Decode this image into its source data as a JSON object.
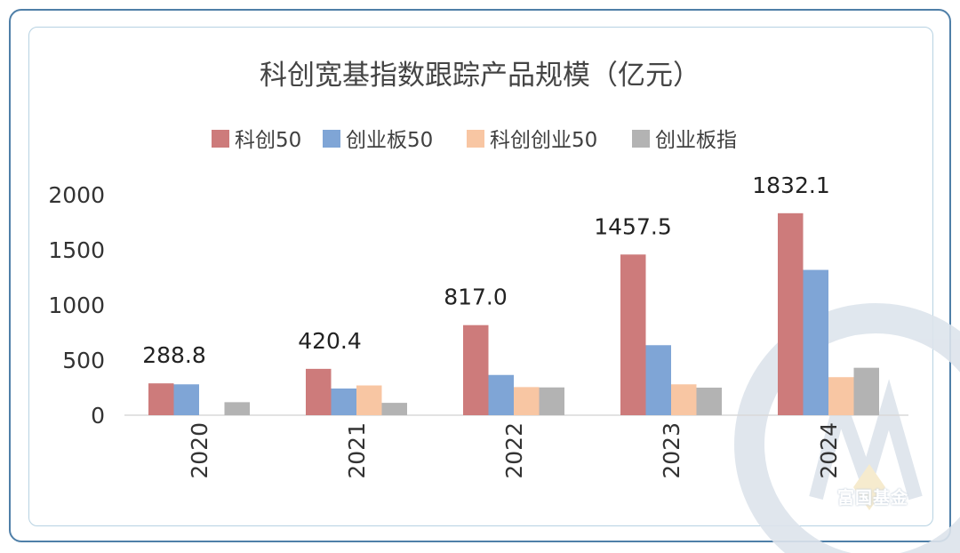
{
  "chart_data": {
    "type": "bar",
    "title": "科创宽基指数跟踪产品规模（亿元）",
    "categories": [
      "2020",
      "2021",
      "2022",
      "2023",
      "2024"
    ],
    "series": [
      {
        "name": "科创50",
        "color": "#cd7b7b",
        "values": [
          288.8,
          420.4,
          817.0,
          1457.5,
          1832.1
        ]
      },
      {
        "name": "创业板50",
        "color": "#7fa5d6",
        "values": [
          280,
          242,
          365,
          635,
          1318
        ]
      },
      {
        "name": "科创创业50",
        "color": "#f8c6a3",
        "values": [
          null,
          270,
          255,
          280,
          345
        ]
      },
      {
        "name": "创业板指",
        "color": "#b3b3b3",
        "values": [
          118,
          112,
          252,
          250,
          430
        ]
      }
    ],
    "data_labels": [
      "288.8",
      "420.4",
      "817.0",
      "1457.5",
      "1832.1"
    ],
    "y_ticks": [
      "0",
      "500",
      "1000",
      "1500",
      "2000"
    ],
    "ylim": [
      0,
      2000
    ],
    "grid": false,
    "legend_position": "top"
  },
  "watermark": {
    "text": "富国基金",
    "color": "#d4dde6"
  }
}
